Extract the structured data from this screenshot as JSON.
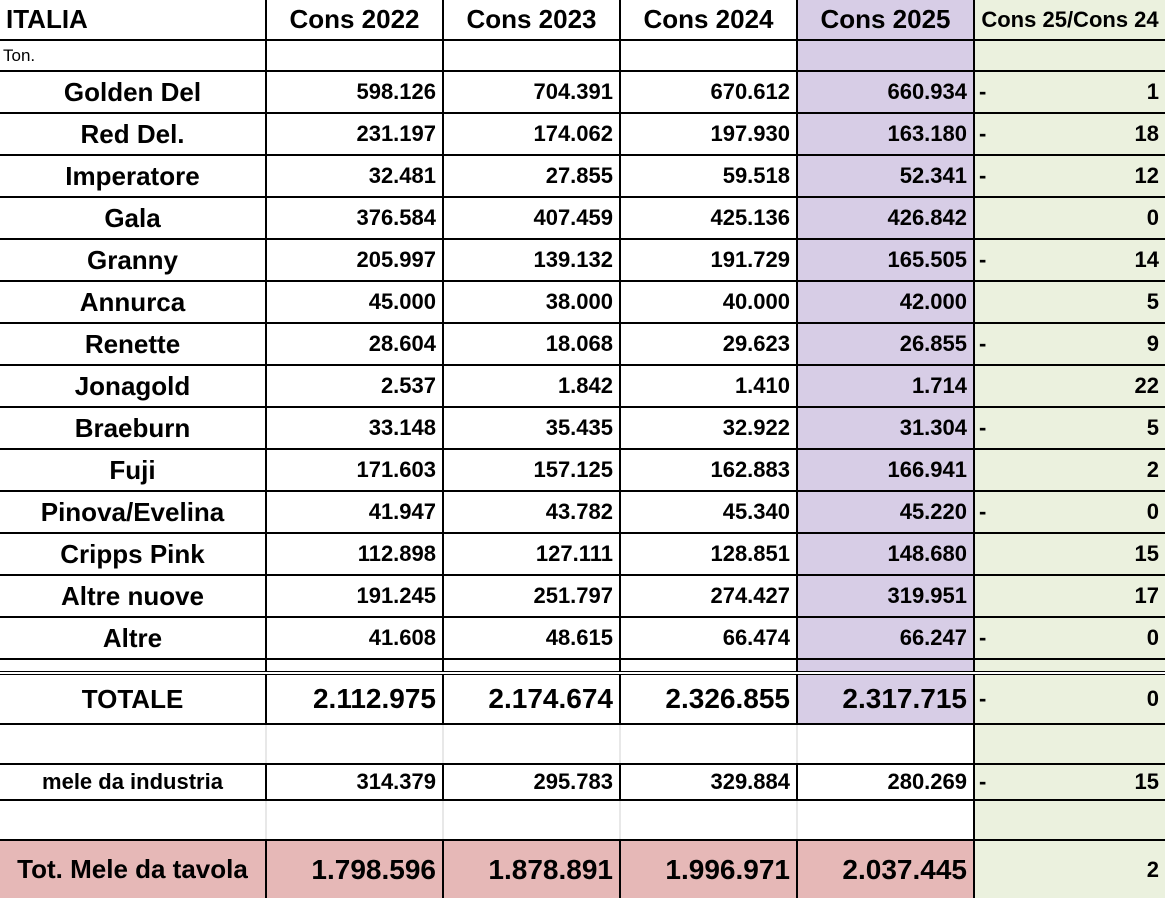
{
  "header": {
    "title": "ITALIA",
    "columns": [
      "Cons 2022",
      "Cons 2023",
      "Cons 2024",
      "Cons 2025",
      "Cons 25/Cons 24"
    ],
    "unit": "Ton."
  },
  "colors": {
    "purple": "#d7cde6",
    "green": "#ebf1de",
    "pink": "#e6b8b7"
  },
  "rows": [
    {
      "name": "Golden Del",
      "v2022": "598.126",
      "v2023": "704.391",
      "v2024": "670.612",
      "v2025": "660.934",
      "sign": "-",
      "ratio": "1"
    },
    {
      "name": "Red Del.",
      "v2022": "231.197",
      "v2023": "174.062",
      "v2024": "197.930",
      "v2025": "163.180",
      "sign": "-",
      "ratio": "18"
    },
    {
      "name": "Imperatore",
      "v2022": "32.481",
      "v2023": "27.855",
      "v2024": "59.518",
      "v2025": "52.341",
      "sign": "-",
      "ratio": "12"
    },
    {
      "name": "Gala",
      "v2022": "376.584",
      "v2023": "407.459",
      "v2024": "425.136",
      "v2025": "426.842",
      "sign": "",
      "ratio": "0"
    },
    {
      "name": "Granny",
      "v2022": "205.997",
      "v2023": "139.132",
      "v2024": "191.729",
      "v2025": "165.505",
      "sign": "-",
      "ratio": "14"
    },
    {
      "name": "Annurca",
      "v2022": "45.000",
      "v2023": "38.000",
      "v2024": "40.000",
      "v2025": "42.000",
      "sign": "",
      "ratio": "5"
    },
    {
      "name": "Renette",
      "v2022": "28.604",
      "v2023": "18.068",
      "v2024": "29.623",
      "v2025": "26.855",
      "sign": "-",
      "ratio": "9"
    },
    {
      "name": "Jonagold",
      "v2022": "2.537",
      "v2023": "1.842",
      "v2024": "1.410",
      "v2025": "1.714",
      "sign": "",
      "ratio": "22"
    },
    {
      "name": "Braeburn",
      "v2022": "33.148",
      "v2023": "35.435",
      "v2024": "32.922",
      "v2025": "31.304",
      "sign": "-",
      "ratio": "5"
    },
    {
      "name": "Fuji",
      "v2022": "171.603",
      "v2023": "157.125",
      "v2024": "162.883",
      "v2025": "166.941",
      "sign": "",
      "ratio": "2"
    },
    {
      "name": "Pinova/Evelina",
      "v2022": "41.947",
      "v2023": "43.782",
      "v2024": "45.340",
      "v2025": "45.220",
      "sign": "-",
      "ratio": "0"
    },
    {
      "name": "Cripps Pink",
      "v2022": "112.898",
      "v2023": "127.111",
      "v2024": "128.851",
      "v2025": "148.680",
      "sign": "",
      "ratio": "15"
    },
    {
      "name": "Altre nuove",
      "v2022": "191.245",
      "v2023": "251.797",
      "v2024": "274.427",
      "v2025": "319.951",
      "sign": "",
      "ratio": "17"
    },
    {
      "name": "Altre",
      "v2022": "41.608",
      "v2023": "48.615",
      "v2024": "66.474",
      "v2025": "66.247",
      "sign": "-",
      "ratio": "0"
    }
  ],
  "totale": {
    "name": "TOTALE",
    "v2022": "2.112.975",
    "v2023": "2.174.674",
    "v2024": "2.326.855",
    "v2025": "2.317.715",
    "sign": "-",
    "ratio": "0"
  },
  "industria": {
    "name": "mele da industria",
    "v2022": "314.379",
    "v2023": "295.783",
    "v2024": "329.884",
    "v2025": "280.269",
    "sign": "-",
    "ratio": "15"
  },
  "tavola": {
    "name": "Tot. Mele da tavola",
    "v2022": "1.798.596",
    "v2023": "1.878.891",
    "v2024": "1.996.971",
    "v2025": "2.037.445",
    "sign": "",
    "ratio": "2"
  }
}
